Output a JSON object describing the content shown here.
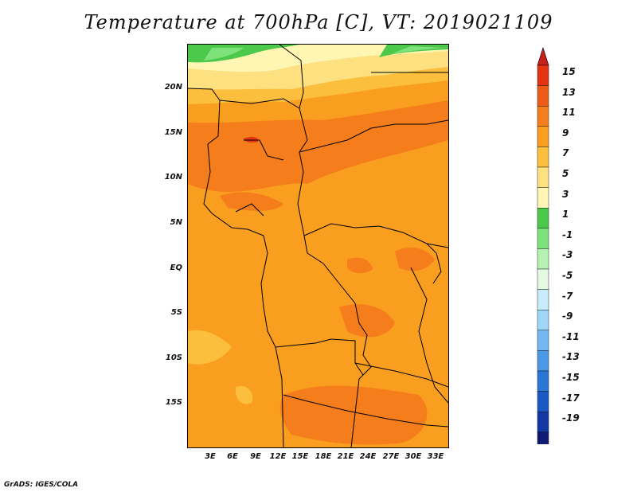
{
  "title": "Temperature at 700hPa [C], VT: 2019021109",
  "credit": "GrADS: IGES/COLA",
  "lat_labels": [
    "20N",
    "15N",
    "10N",
    "5N",
    "EQ",
    "5S",
    "10S",
    "15S"
  ],
  "lon_labels": [
    "3E",
    "6E",
    "9E",
    "12E",
    "15E",
    "18E",
    "21E",
    "24E",
    "27E",
    "30E",
    "33E"
  ],
  "colorbar": {
    "labels": [
      "15",
      "13",
      "11",
      "9",
      "7",
      "5",
      "3",
      "1",
      "-1",
      "-3",
      "-5",
      "-7",
      "-9",
      "-11",
      "-13",
      "-15",
      "-17",
      "-19"
    ],
    "colors": [
      "#e63311",
      "#f05a17",
      "#f57d1c",
      "#f99e1e",
      "#fbbe3d",
      "#fde07f",
      "#fff6b4",
      "#4cc84a",
      "#7ee27a",
      "#b5f2b1",
      "#e3fae1",
      "#c8ecfb",
      "#a0d6f7",
      "#73b8f0",
      "#4b98e6",
      "#2a76d6",
      "#1a58c4",
      "#1338a4",
      "#0e1a73"
    ],
    "top_arrow_color": "#c8201a",
    "bottom_arrow_color": "#e0e0f4"
  }
}
